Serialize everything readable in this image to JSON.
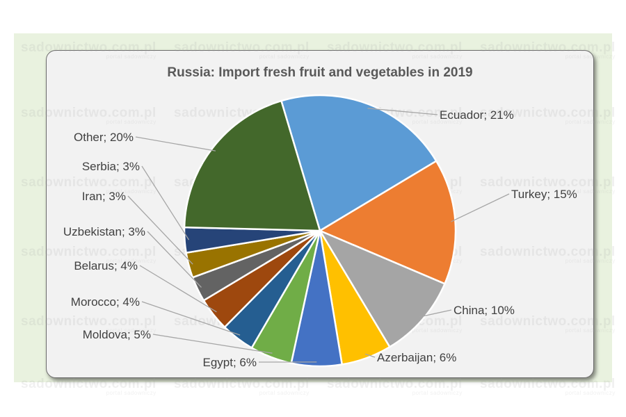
{
  "watermark": {
    "site": "sadownictwo.com.pl",
    "tagline": "portal sadowniczy"
  },
  "chart_data": {
    "type": "pie",
    "title": "Russia: Import fresh fruit and vegetables in 2019",
    "slices": [
      {
        "label": "Ecuador",
        "value": 21,
        "text": "Ecuador; 21%",
        "color": "#5b9bd5"
      },
      {
        "label": "Turkey",
        "value": 15,
        "text": "Turkey; 15%",
        "color": "#ed7d31"
      },
      {
        "label": "China",
        "value": 10,
        "text": "China; 10%",
        "color": "#a5a5a5"
      },
      {
        "label": "Azerbaijan",
        "value": 6,
        "text": "Azerbaijan; 6%",
        "color": "#ffc000"
      },
      {
        "label": "Egypt",
        "value": 6,
        "text": "Egypt; 6%",
        "color": "#4472c4"
      },
      {
        "label": "Moldova",
        "value": 5,
        "text": "Moldova; 5%",
        "color": "#70ad47"
      },
      {
        "label": "Morocco",
        "value": 4,
        "text": "Morocco; 4%",
        "color": "#255e91"
      },
      {
        "label": "Belarus",
        "value": 4,
        "text": "Belarus; 4%",
        "color": "#9e480e"
      },
      {
        "label": "Uzbekistan",
        "value": 3,
        "text": "Uzbekistan; 3%",
        "color": "#636363"
      },
      {
        "label": "Iran",
        "value": 3,
        "text": "Iran; 3%",
        "color": "#997300"
      },
      {
        "label": "Serbia",
        "value": 3,
        "text": "Serbia; 3%",
        "color": "#264478"
      },
      {
        "label": "Other",
        "value": 20,
        "text": "Other; 20%",
        "color": "#43682b"
      }
    ]
  }
}
